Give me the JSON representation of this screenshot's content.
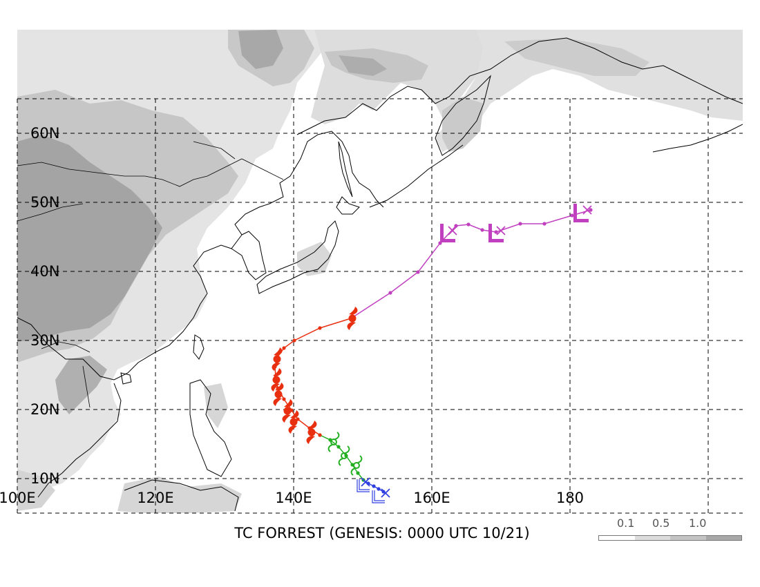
{
  "title": "TC FORREST (GENESIS: 0000 UTC 10/21)",
  "map": {
    "lat_labels": [
      {
        "text": "60N",
        "lat": 60
      },
      {
        "text": "50N",
        "lat": 50
      },
      {
        "text": "40N",
        "lat": 40
      },
      {
        "text": "30N",
        "lat": 30
      },
      {
        "text": "20N",
        "lat": 20
      },
      {
        "text": "10N",
        "lat": 10
      }
    ],
    "lon_labels": [
      {
        "text": "100E",
        "lon": 100
      },
      {
        "text": "120E",
        "lon": 120
      },
      {
        "text": "140E",
        "lon": 140
      },
      {
        "text": "160E",
        "lon": 160
      },
      {
        "text": "180",
        "lon": 180
      }
    ],
    "extent": {
      "lon_min": 100,
      "lon_max": 205,
      "lat_min": 5,
      "lat_max": 65
    },
    "grid_lons": [
      100,
      120,
      140,
      160,
      180,
      200
    ],
    "grid_lats": [
      10,
      20,
      30,
      40,
      50,
      60
    ],
    "grid": true
  },
  "legend": {
    "labels": [
      "0.1",
      "0.5",
      "1.0"
    ],
    "colors": [
      "#ffffff",
      "#dcdcdc",
      "#c4c4c4",
      "#a8a8a8"
    ]
  },
  "track": {
    "colors": {
      "low": "#2f3fe0",
      "tropical_storm": "#22b022",
      "typhoon": "#e83010",
      "extratropical": "#c040c0"
    },
    "segments": [
      {
        "stage": "low",
        "points": [
          [
            153.0,
            8.1
          ],
          [
            152.3,
            8.5
          ],
          [
            151.6,
            8.9
          ],
          [
            150.8,
            9.3
          ],
          [
            150.1,
            9.8
          ]
        ]
      },
      {
        "stage": "tropical_storm",
        "points": [
          [
            150.1,
            9.8
          ],
          [
            149.3,
            10.8
          ],
          [
            148.5,
            12.0
          ],
          [
            147.6,
            13.3
          ],
          [
            146.5,
            14.6
          ],
          [
            145.3,
            15.6
          ],
          [
            143.8,
            16.3
          ]
        ]
      },
      {
        "stage": "typhoon",
        "points": [
          [
            143.8,
            16.3
          ],
          [
            142.3,
            17.3
          ],
          [
            140.6,
            18.6
          ],
          [
            139.7,
            19.9
          ],
          [
            138.6,
            21.5
          ],
          [
            137.7,
            23.1
          ],
          [
            137.4,
            24.7
          ],
          [
            137.3,
            26.2
          ],
          [
            137.6,
            27.5
          ],
          [
            138.6,
            28.9
          ],
          [
            140.1,
            30.0
          ],
          [
            143.8,
            31.8
          ],
          [
            148.3,
            33.2
          ]
        ]
      },
      {
        "stage": "extratropical",
        "points": [
          [
            148.3,
            33.2
          ],
          [
            154.0,
            36.9
          ],
          [
            158.0,
            39.9
          ],
          [
            161.2,
            44.1
          ],
          [
            163.5,
            46.6
          ],
          [
            165.3,
            46.8
          ],
          [
            167.3,
            46.0
          ],
          [
            169.3,
            45.7
          ],
          [
            172.8,
            46.9
          ],
          [
            176.3,
            46.9
          ],
          [
            180.3,
            48.1
          ],
          [
            183.0,
            48.9
          ]
        ]
      }
    ],
    "symbols": [
      {
        "type": "low-cross",
        "lon": 153.3,
        "lat": 7.9,
        "stage": "low"
      },
      {
        "type": "low-cross",
        "lon": 150.4,
        "lat": 9.5,
        "stage": "low"
      },
      {
        "type": "low-L",
        "lon": 150.0,
        "lat": 8.9,
        "stage": "low"
      },
      {
        "type": "low-L",
        "lon": 152.2,
        "lat": 7.3,
        "stage": "low"
      },
      {
        "type": "storm",
        "lon": 149.1,
        "lat": 11.9,
        "stage": "tropical_storm"
      },
      {
        "type": "storm",
        "lon": 147.3,
        "lat": 13.3,
        "stage": "tropical_storm"
      },
      {
        "type": "storm",
        "lon": 145.8,
        "lat": 15.3,
        "stage": "tropical_storm"
      },
      {
        "type": "typhoon",
        "lon": 142.6,
        "lat": 16.7,
        "stage": "typhoon"
      },
      {
        "type": "typhoon",
        "lon": 140.0,
        "lat": 18.2,
        "stage": "typhoon"
      },
      {
        "type": "typhoon",
        "lon": 139.1,
        "lat": 19.8,
        "stage": "typhoon"
      },
      {
        "type": "typhoon",
        "lon": 137.8,
        "lat": 22.2,
        "stage": "typhoon"
      },
      {
        "type": "typhoon",
        "lon": 137.5,
        "lat": 24.3,
        "stage": "typhoon"
      },
      {
        "type": "typhoon",
        "lon": 137.6,
        "lat": 27.3,
        "stage": "typhoon"
      },
      {
        "type": "typhoon",
        "lon": 148.5,
        "lat": 33.2,
        "stage": "typhoon"
      },
      {
        "type": "ext-L",
        "lon": 162.3,
        "lat": 45.4,
        "stage": "extratropical"
      },
      {
        "type": "ext-L",
        "lon": 169.3,
        "lat": 45.4,
        "stage": "extratropical"
      },
      {
        "type": "ext-L",
        "lon": 181.6,
        "lat": 48.3,
        "stage": "extratropical"
      },
      {
        "type": "ext-cross",
        "lon": 163.0,
        "lat": 45.9,
        "stage": "extratropical"
      },
      {
        "type": "ext-cross",
        "lon": 170.0,
        "lat": 45.9,
        "stage": "extratropical"
      },
      {
        "type": "ext-cross",
        "lon": 182.5,
        "lat": 48.9,
        "stage": "extratropical"
      }
    ]
  }
}
